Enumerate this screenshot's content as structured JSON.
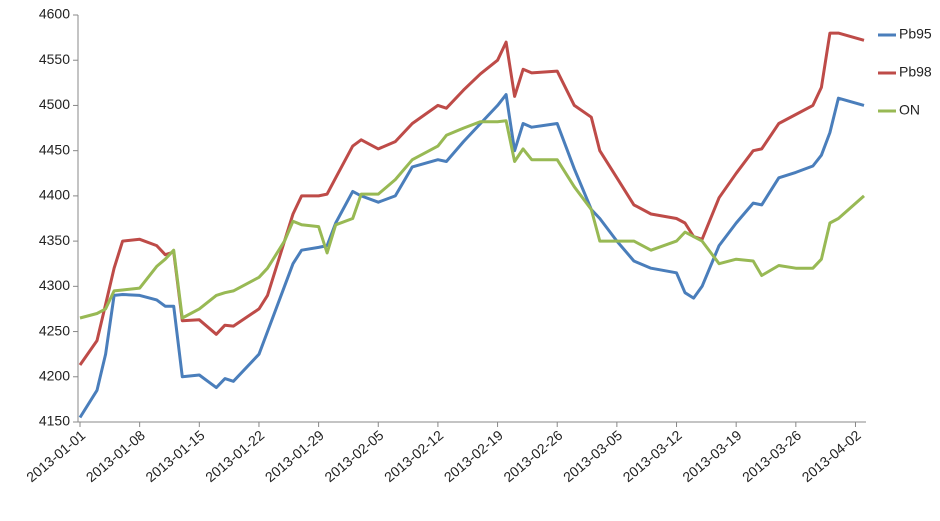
{
  "chart_data": {
    "type": "line",
    "x": [
      "2013-01-01",
      "2013-01-03",
      "2013-01-04",
      "2013-01-05",
      "2013-01-06",
      "2013-01-08",
      "2013-01-10",
      "2013-01-11",
      "2013-01-12",
      "2013-01-13",
      "2013-01-15",
      "2013-01-17",
      "2013-01-18",
      "2013-01-19",
      "2013-01-22",
      "2013-01-23",
      "2013-01-25",
      "2013-01-26",
      "2013-01-27",
      "2013-01-29",
      "2013-01-30",
      "2013-01-31",
      "2013-02-02",
      "2013-02-03",
      "2013-02-05",
      "2013-02-07",
      "2013-02-09",
      "2013-02-12",
      "2013-02-13",
      "2013-02-15",
      "2013-02-17",
      "2013-02-19",
      "2013-02-20",
      "2013-02-21",
      "2013-02-22",
      "2013-02-23",
      "2013-02-26",
      "2013-02-28",
      "2013-03-02",
      "2013-03-03",
      "2013-03-05",
      "2013-03-07",
      "2013-03-09",
      "2013-03-12",
      "2013-03-13",
      "2013-03-14",
      "2013-03-15",
      "2013-03-17",
      "2013-03-19",
      "2013-03-21",
      "2013-03-22",
      "2013-03-24",
      "2013-03-26",
      "2013-03-28",
      "2013-03-29",
      "2013-03-30",
      "2013-03-31",
      "2013-04-03"
    ],
    "series": [
      {
        "name": "Pb95",
        "color": "#4a7ebb",
        "values": [
          4155,
          4185,
          4225,
          4290,
          4291,
          4290,
          4285,
          4278,
          4278,
          4200,
          4202,
          4188,
          4198,
          4195,
          4225,
          4250,
          4300,
          4325,
          4340,
          4343,
          4345,
          4370,
          4405,
          4400,
          4393,
          4400,
          4432,
          4440,
          4438,
          4460,
          4480,
          4500,
          4512,
          4450,
          4480,
          4476,
          4480,
          4430,
          4385,
          4375,
          4350,
          4328,
          4320,
          4315,
          4293,
          4287,
          4300,
          4345,
          4370,
          4392,
          4390,
          4420,
          4426,
          4433,
          4445,
          4470,
          4508,
          4500
        ]
      },
      {
        "name": "Pb98",
        "color": "#be4b48",
        "values": [
          4213,
          4240,
          4280,
          4320,
          4350,
          4352,
          4345,
          4335,
          4338,
          4262,
          4263,
          4247,
          4257,
          4256,
          4275,
          4290,
          4350,
          4380,
          4400,
          4400,
          4402,
          4420,
          4455,
          4462,
          4452,
          4460,
          4480,
          4500,
          4497,
          4517,
          4535,
          4550,
          4570,
          4510,
          4540,
          4536,
          4538,
          4500,
          4487,
          4450,
          4420,
          4390,
          4380,
          4375,
          4370,
          4355,
          4352,
          4398,
          4425,
          4450,
          4452,
          4480,
          4490,
          4500,
          4520,
          4580,
          4580,
          4572
        ]
      },
      {
        "name": "ON",
        "color": "#98b954",
        "values": [
          4265,
          4270,
          4275,
          4295,
          4296,
          4298,
          4322,
          4330,
          4340,
          4265,
          4275,
          4290,
          4293,
          4295,
          4310,
          4320,
          4350,
          4372,
          4368,
          4366,
          4337,
          4368,
          4375,
          4402,
          4402,
          4418,
          4440,
          4455,
          4467,
          4475,
          4482,
          4482,
          4483,
          4438,
          4452,
          4440,
          4440,
          4410,
          4385,
          4350,
          4350,
          4350,
          4340,
          4350,
          4360,
          4355,
          4350,
          4325,
          4330,
          4328,
          4312,
          4323,
          4320,
          4320,
          4330,
          4370,
          4375,
          4400
        ]
      }
    ],
    "xlim": [
      "2013-01-01",
      "2013-04-03"
    ],
    "xticks": [
      "2013-01-01",
      "2013-01-08",
      "2013-01-15",
      "2013-01-22",
      "2013-01-29",
      "2013-02-05",
      "2013-02-12",
      "2013-02-19",
      "2013-02-26",
      "2013-03-05",
      "2013-03-12",
      "2013-03-19",
      "2013-03-26",
      "2013-04-02"
    ],
    "ylim": [
      4150,
      4600
    ],
    "yticks": [
      4150,
      4200,
      4250,
      4300,
      4350,
      4400,
      4450,
      4500,
      4550,
      4600
    ],
    "grid": false,
    "legend": "right"
  }
}
